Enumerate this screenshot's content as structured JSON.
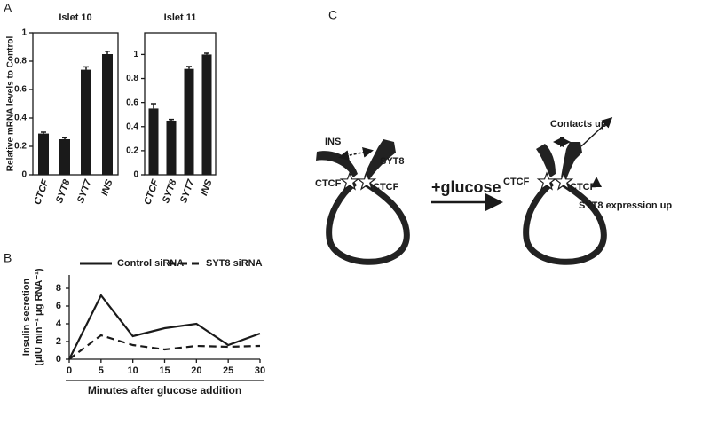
{
  "panel_labels": [
    "A",
    "B",
    "C"
  ],
  "chart_data": [
    {
      "type": "bar",
      "title": "Islet 10",
      "ylabel": "Relative mRNA levels to Control",
      "categories": [
        "CTCF",
        "SYT8",
        "SYT7",
        "INS"
      ],
      "values": [
        0.29,
        0.25,
        0.74,
        0.85
      ],
      "errors": [
        0.01,
        0.01,
        0.02,
        0.02
      ],
      "color": "#1a1a1a",
      "ylim": [
        0,
        1
      ],
      "yticks": [
        0,
        0.2,
        0.4,
        0.6,
        0.8,
        1
      ]
    },
    {
      "type": "bar",
      "title": "Islet 11",
      "categories": [
        "CTCF",
        "SYT8",
        "SYT7",
        "INS"
      ],
      "values": [
        0.55,
        0.45,
        0.88,
        1.0
      ],
      "errors": [
        0.04,
        0.01,
        0.02,
        0.01
      ],
      "color": "#1a1a1a",
      "ylim": [
        0,
        1.18
      ],
      "yticks": [
        0,
        0.2,
        0.4,
        0.6,
        0.8,
        1
      ]
    },
    {
      "type": "line",
      "ylabel": [
        "Insulin secretion",
        "(μIU min⁻¹ μg RNA⁻¹)"
      ],
      "xlabel": "Minutes after glucose addition",
      "x": [
        0,
        5,
        10,
        15,
        20,
        25,
        30
      ],
      "series": [
        {
          "name": "Control siRNA",
          "color": "#1a1a1a",
          "style": "solid",
          "values": [
            0,
            7.2,
            2.6,
            3.5,
            4.0,
            1.6,
            2.9
          ]
        },
        {
          "name": "SYT8 siRNA",
          "color": "#1a1a1a",
          "style": "dashed",
          "values": [
            0,
            2.7,
            1.6,
            1.1,
            1.5,
            1.4,
            1.5
          ]
        }
      ],
      "xlim": [
        0,
        30
      ],
      "xticks": [
        0,
        5,
        10,
        15,
        20,
        25,
        30
      ],
      "ylim": [
        0,
        8
      ],
      "yticks": [
        0,
        2,
        4,
        6,
        8
      ]
    }
  ],
  "diagram": {
    "before": {
      "ins": "INS",
      "syt8": "SYT8",
      "ctcf_left": "CTCF",
      "ctcf_right": "CTCF"
    },
    "arrow_label": "+glucose",
    "after": {
      "ctcf_left": "CTCF",
      "ctcf_right": "CTCF",
      "contacts": "Contacts up",
      "expression": "SYT8 expression up"
    }
  }
}
